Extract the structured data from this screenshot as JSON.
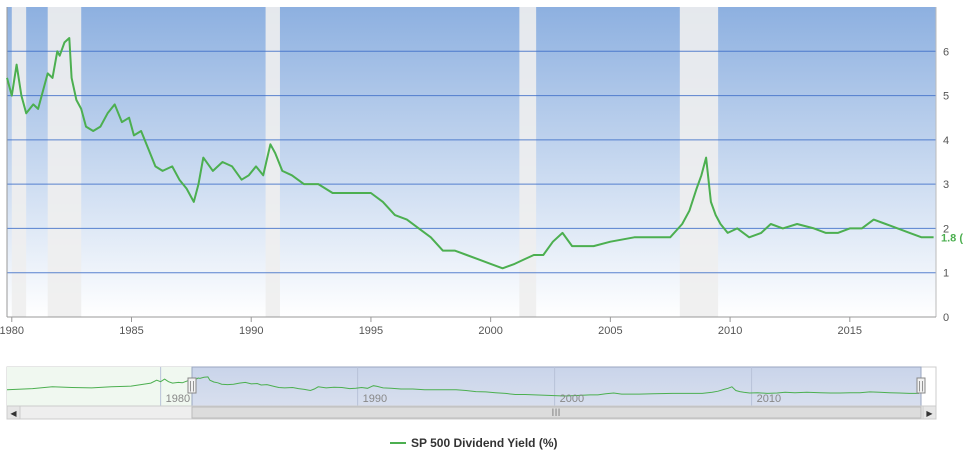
{
  "chart_data": {
    "type": "line",
    "title": "",
    "xlabel": "",
    "ylabel": "",
    "xlim": [
      1979.8,
      2018.6
    ],
    "ylim": [
      0,
      7
    ],
    "x_ticks": [
      1980,
      1985,
      1990,
      1995,
      2000,
      2005,
      2010,
      2015
    ],
    "y_ticks": [
      0,
      1,
      2,
      3,
      4,
      5,
      6
    ],
    "grid": true,
    "legend": "bottom-center",
    "last_value_label": "1.8 (",
    "recession_bands": [
      [
        1980.0,
        1980.6
      ],
      [
        1981.5,
        1982.9
      ],
      [
        1990.6,
        1991.2
      ],
      [
        2001.2,
        2001.9
      ],
      [
        2007.9,
        2009.5
      ]
    ],
    "series": [
      {
        "name": "SP 500 Dividend Yield (%)",
        "color": "#4caf50",
        "x": [
          1979.8,
          1980.0,
          1980.2,
          1980.4,
          1980.6,
          1980.9,
          1981.1,
          1981.3,
          1981.5,
          1981.7,
          1981.9,
          1982.0,
          1982.2,
          1982.4,
          1982.5,
          1982.7,
          1982.9,
          1983.1,
          1983.4,
          1983.7,
          1984.0,
          1984.3,
          1984.6,
          1984.9,
          1985.1,
          1985.4,
          1985.7,
          1986.0,
          1986.3,
          1986.7,
          1987.0,
          1987.3,
          1987.6,
          1987.8,
          1988.0,
          1988.4,
          1988.8,
          1989.2,
          1989.6,
          1989.9,
          1990.2,
          1990.5,
          1990.8,
          1991.0,
          1991.3,
          1991.7,
          1992.2,
          1992.8,
          1993.4,
          1994.0,
          1994.5,
          1995.0,
          1995.5,
          1996.0,
          1996.5,
          1997.0,
          1997.5,
          1998.0,
          1998.5,
          1999.0,
          1999.5,
          2000.0,
          2000.5,
          2001.0,
          2001.4,
          2001.8,
          2002.2,
          2002.6,
          2003.0,
          2003.4,
          2003.8,
          2004.3,
          2005.0,
          2006.0,
          2007.0,
          2007.5,
          2008.0,
          2008.3,
          2008.6,
          2008.8,
          2009.0,
          2009.2,
          2009.4,
          2009.6,
          2009.9,
          2010.3,
          2010.8,
          2011.3,
          2011.7,
          2012.2,
          2012.8,
          2013.5,
          2014.0,
          2014.5,
          2015.0,
          2015.5,
          2016.0,
          2016.5,
          2017.0,
          2017.5,
          2018.0,
          2018.5
        ],
        "values": [
          5.4,
          5.0,
          5.7,
          5.0,
          4.6,
          4.8,
          4.7,
          5.1,
          5.5,
          5.4,
          6.0,
          5.9,
          6.2,
          6.3,
          5.4,
          4.9,
          4.7,
          4.3,
          4.2,
          4.3,
          4.6,
          4.8,
          4.4,
          4.5,
          4.1,
          4.2,
          3.8,
          3.4,
          3.3,
          3.4,
          3.1,
          2.9,
          2.6,
          3.0,
          3.6,
          3.3,
          3.5,
          3.4,
          3.1,
          3.2,
          3.4,
          3.2,
          3.9,
          3.7,
          3.3,
          3.2,
          3.0,
          3.0,
          2.8,
          2.8,
          2.8,
          2.8,
          2.6,
          2.3,
          2.2,
          2.0,
          1.8,
          1.5,
          1.5,
          1.4,
          1.3,
          1.2,
          1.1,
          1.2,
          1.3,
          1.4,
          1.4,
          1.7,
          1.9,
          1.6,
          1.6,
          1.6,
          1.7,
          1.8,
          1.8,
          1.8,
          2.1,
          2.4,
          2.9,
          3.2,
          3.6,
          2.6,
          2.3,
          2.1,
          1.9,
          2.0,
          1.8,
          1.9,
          2.1,
          2.0,
          2.1,
          2.0,
          1.9,
          1.9,
          2.0,
          2.0,
          2.2,
          2.1,
          2.0,
          1.9,
          1.8,
          1.8
        ]
      }
    ],
    "navigator": {
      "x_ticks": [
        1980,
        1990,
        2000,
        2010
      ]
    }
  },
  "legend": {
    "label": "SP 500 Dividend Yield (%)"
  },
  "navigator": {
    "labels": [
      "1980",
      "1990",
      "2000",
      "2010"
    ],
    "handle_glyph": "||",
    "grip_glyph": "III",
    "left_arrow": "◀",
    "right_arrow": "▶"
  },
  "colors": {
    "line": "#4caf50",
    "plot_top": "#8db0e0",
    "plot_bottom": "#ffffff",
    "recession": "#eeeeee",
    "grid": "#3f6fc8"
  }
}
